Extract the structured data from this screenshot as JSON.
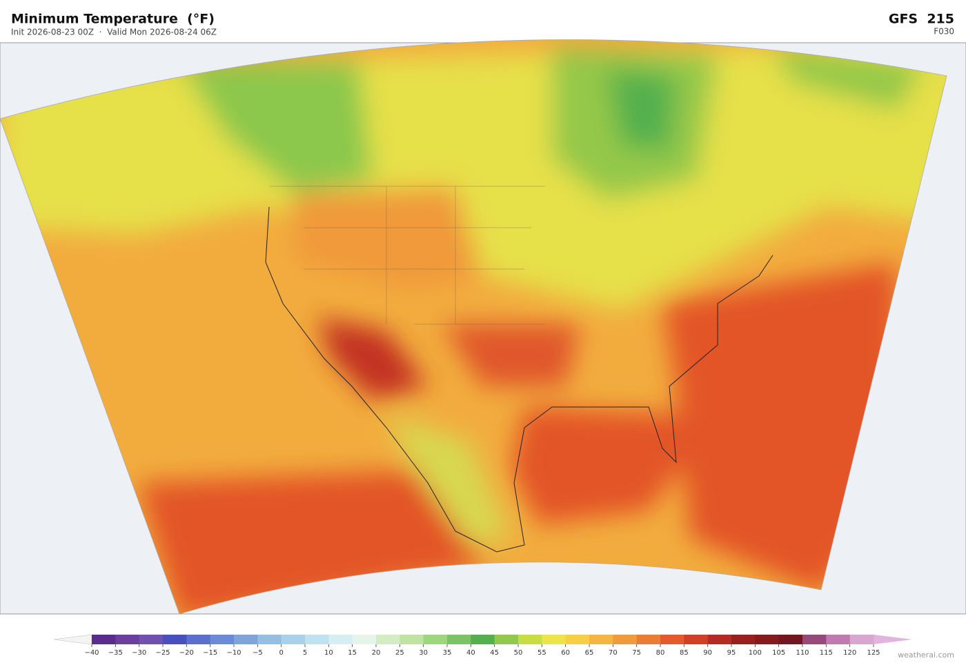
{
  "header": {
    "title": "Minimum Temperature  (°F)",
    "subtitle": "Init 2026-08-23 00Z  ·  Valid Mon 2026-08-24 06Z",
    "model": "GFS  215",
    "forecast_hour": "F030"
  },
  "colorbar": {
    "ticks": [
      {
        "value": -40,
        "label": "−40"
      },
      {
        "value": -35,
        "label": "−35"
      },
      {
        "value": -30,
        "label": "−30"
      },
      {
        "value": -25,
        "label": "−25"
      },
      {
        "value": -20,
        "label": "−20"
      },
      {
        "value": -15,
        "label": "−15"
      },
      {
        "value": -10,
        "label": "−10"
      },
      {
        "value": -5,
        "label": "−5"
      },
      0,
      5,
      10,
      15,
      20,
      25,
      30,
      35,
      40,
      45,
      50,
      55,
      60,
      65,
      70,
      75,
      80,
      85,
      90,
      95,
      100,
      105,
      110,
      115,
      120,
      125
    ],
    "colors": [
      "#5b2c8f",
      "#6a3fa0",
      "#7050b0",
      "#4a4fbf",
      "#5a6fd0",
      "#6b8ad8",
      "#7fa4dc",
      "#94bfe3",
      "#a9d2ea",
      "#c0e2ef",
      "#d6eef2",
      "#e6f4ea",
      "#d4ecc6",
      "#bfe3a0",
      "#9ed67d",
      "#7cc463",
      "#52b04d",
      "#94c84a",
      "#c8dc45",
      "#ece44a",
      "#f6cf45",
      "#f5b540",
      "#f09a3a",
      "#ec7b33",
      "#e45a2a",
      "#d23f25",
      "#b52a22",
      "#9a1f1f",
      "#861a1c",
      "#731621",
      "#974a7a",
      "#c07ab0",
      "#d9a6d0"
    ],
    "extend_colors": [
      "#f4f4f4",
      "#e0b4dc"
    ]
  },
  "credit": "weatherai.com"
}
